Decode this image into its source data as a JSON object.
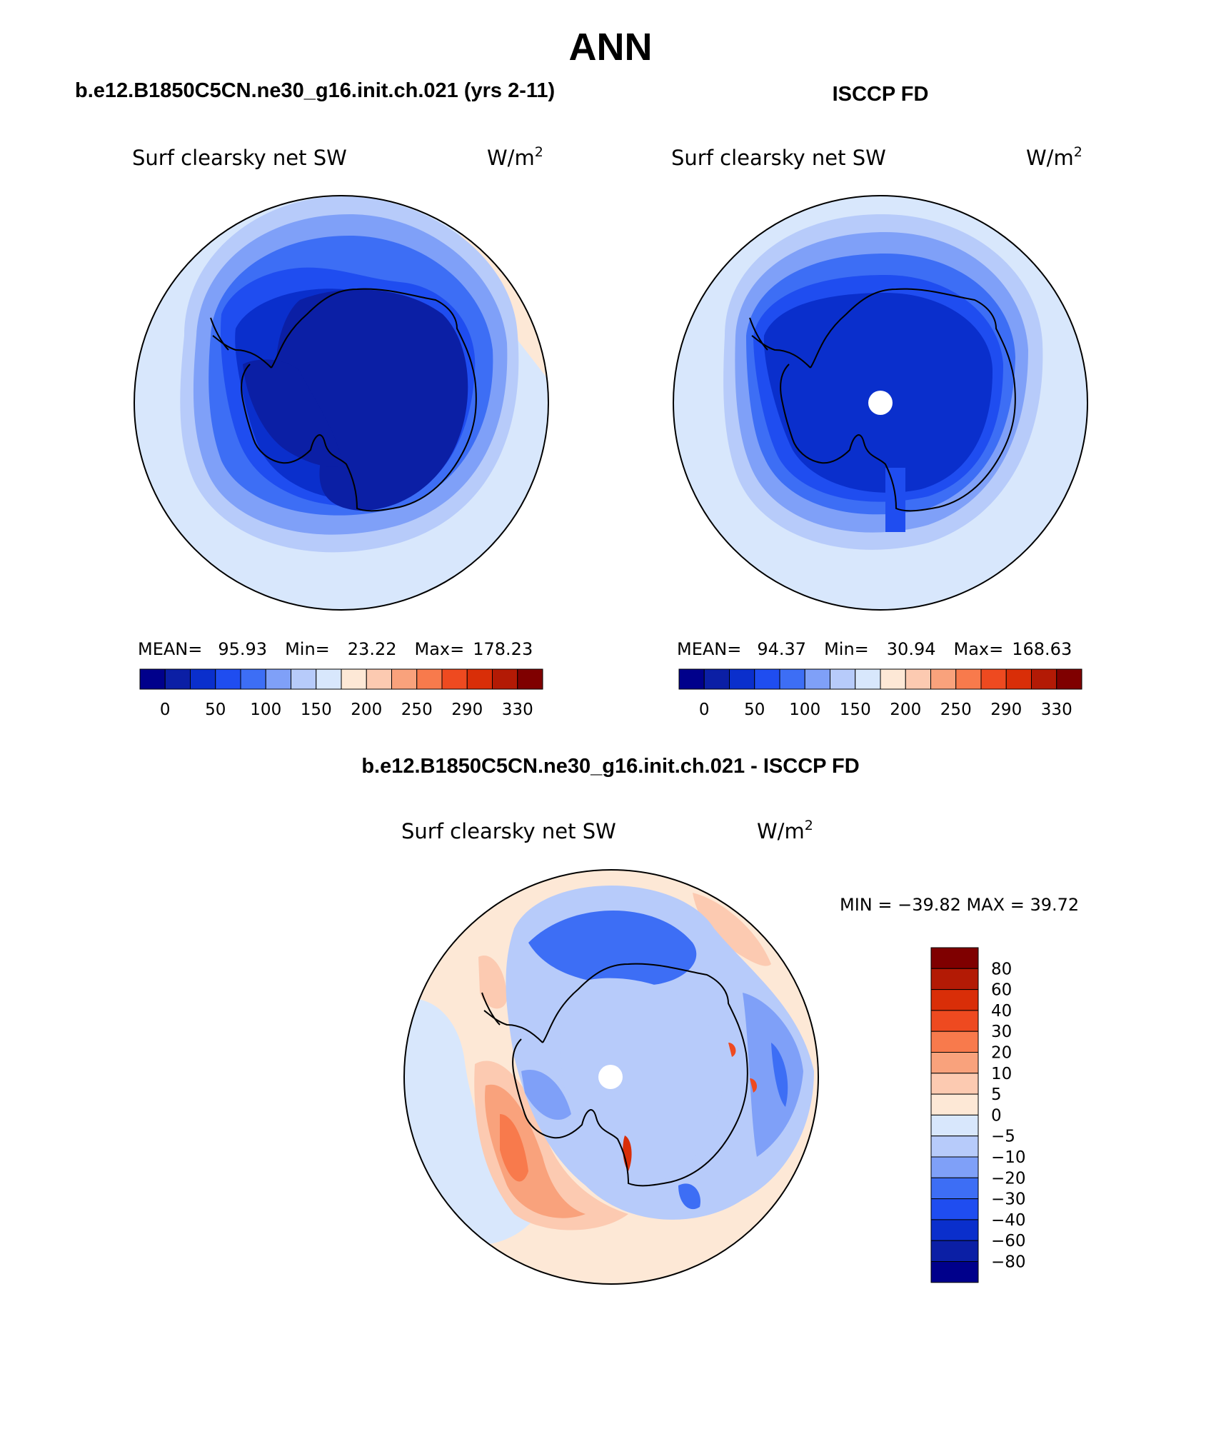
{
  "title": "ANN",
  "colors": {
    "main": [
      "#00008b",
      "#0b1fa5",
      "#0a2fcc",
      "#1f4df0",
      "#3d6ef5",
      "#7fa0f8",
      "#b7cbfa",
      "#d8e7fc",
      "#fde8d6",
      "#fccab1",
      "#f9a27c",
      "#f87a4c",
      "#ee4a20",
      "#d92e08",
      "#b31a05",
      "#7f0000"
    ],
    "diff": [
      "#00008b",
      "#0b1fa5",
      "#0a2fcc",
      "#1f4df0",
      "#3d6ef5",
      "#7fa0f8",
      "#b7cbfa",
      "#d8e7fc",
      "#fde8d6",
      "#fccab1",
      "#f9a27c",
      "#f87a4c",
      "#ee4a20",
      "#d92e08",
      "#b31a05",
      "#7f0000"
    ]
  },
  "panels": [
    {
      "id": "model",
      "header": "b.e12.B1850C5CN.ne30_g16.init.ch.021 (yrs 2-11)",
      "variable": "Surf clearsky net SW",
      "units": "W/m",
      "units_sup": "2",
      "stats": {
        "mean_label": "MEAN=",
        "mean": "95.93",
        "min_label": "Min=",
        "min": "23.22",
        "max_label": "Max=",
        "max": "178.23"
      },
      "colorbar_labels": [
        "0",
        "50",
        "100",
        "150",
        "200",
        "250",
        "290",
        "330"
      ],
      "pole_hole": false
    },
    {
      "id": "obs",
      "header": "ISCCP FD",
      "variable": "Surf clearsky net SW",
      "units": "W/m",
      "units_sup": "2",
      "stats": {
        "mean_label": "MEAN=",
        "mean": "94.37",
        "min_label": "Min=",
        "min": "30.94",
        "max_label": "Max=",
        "max": "168.63"
      },
      "colorbar_labels": [
        "0",
        "50",
        "100",
        "150",
        "200",
        "250",
        "290",
        "330"
      ],
      "pole_hole": true
    }
  ],
  "diff_panel": {
    "header": "b.e12.B1850C5CN.ne30_g16.init.ch.021 - ISCCP FD",
    "variable": "Surf clearsky net SW",
    "units": "W/m",
    "units_sup": "2",
    "minmax": "MIN = −39.82 MAX =   39.72",
    "colorbar_labels": [
      "80",
      "60",
      "40",
      "30",
      "20",
      "10",
      "5",
      "0",
      "−5",
      "−10",
      "−20",
      "−30",
      "−40",
      "−60",
      "−80"
    ]
  }
}
